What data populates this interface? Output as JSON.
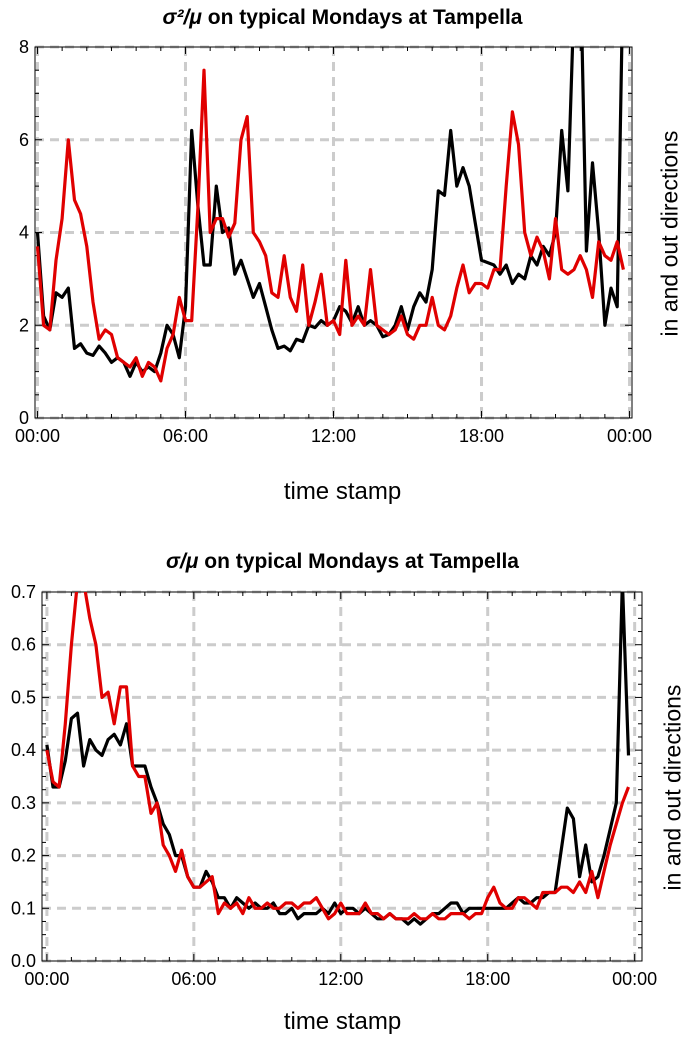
{
  "chart_data": [
    {
      "type": "line",
      "title_math": "σ²/μ",
      "title_rest": " on typical Mondays at Tampella",
      "xlabel": "time stamp",
      "ylabel": "in and out directions",
      "xlim": [
        -0.1,
        24.1
      ],
      "ylim": [
        0,
        8
      ],
      "x_ticks": [
        0,
        6,
        12,
        18,
        24
      ],
      "x_tick_labels": [
        "00:00",
        "06:00",
        "12:00",
        "18:00",
        "00:00"
      ],
      "y_ticks": [
        0,
        2,
        4,
        6,
        8
      ],
      "y_tick_labels": [
        "0",
        "2",
        "4",
        "6",
        "8"
      ],
      "grid": true,
      "grid_style": "dashed",
      "x_unit": "hours",
      "series": [
        {
          "color": "#000000",
          "x": [
            0.0,
            0.25,
            0.5,
            0.75,
            1.0,
            1.25,
            1.5,
            1.75,
            2.0,
            2.25,
            2.5,
            2.75,
            3.0,
            3.25,
            3.5,
            3.75,
            4.0,
            4.25,
            4.5,
            4.75,
            5.0,
            5.25,
            5.5,
            5.75,
            6.0,
            6.25,
            6.5,
            6.75,
            7.0,
            7.25,
            7.5,
            7.75,
            8.0,
            8.25,
            8.5,
            8.75,
            9.0,
            9.25,
            9.5,
            9.75,
            10.0,
            10.25,
            10.5,
            10.75,
            11.0,
            11.25,
            11.5,
            11.75,
            12.0,
            12.25,
            12.5,
            12.75,
            13.0,
            13.25,
            13.5,
            13.75,
            14.0,
            14.25,
            14.5,
            14.75,
            15.0,
            15.25,
            15.5,
            15.75,
            16.0,
            16.25,
            16.5,
            16.75,
            17.0,
            17.25,
            17.5,
            17.75,
            18.0,
            18.25,
            18.5,
            18.75,
            19.0,
            19.25,
            19.5,
            19.75,
            20.0,
            20.25,
            20.5,
            20.75,
            21.0,
            21.25,
            21.5,
            21.75,
            22.0,
            22.25,
            22.5,
            22.75,
            23.0,
            23.25,
            23.5,
            23.75
          ],
          "y": [
            4.0,
            2.2,
            1.9,
            2.7,
            2.6,
            2.8,
            1.5,
            1.6,
            1.4,
            1.35,
            1.55,
            1.4,
            1.2,
            1.3,
            1.2,
            0.9,
            1.2,
            1.0,
            1.1,
            1.0,
            1.4,
            2.0,
            1.8,
            1.3,
            2.4,
            6.2,
            4.6,
            3.3,
            3.3,
            5.0,
            4.0,
            4.1,
            3.1,
            3.4,
            3.0,
            2.6,
            2.9,
            2.4,
            1.9,
            1.5,
            1.55,
            1.45,
            1.7,
            1.65,
            2.0,
            1.95,
            2.1,
            2.0,
            2.1,
            2.4,
            2.3,
            2.05,
            2.4,
            2.0,
            2.1,
            2.0,
            1.75,
            1.8,
            2.0,
            2.4,
            1.9,
            2.4,
            2.7,
            2.5,
            3.2,
            4.9,
            4.8,
            6.2,
            5.0,
            5.4,
            5.0,
            4.2,
            3.4,
            3.35,
            3.3,
            3.1,
            3.3,
            2.9,
            3.1,
            3.0,
            3.5,
            3.3,
            3.7,
            3.5,
            4.0,
            6.2,
            4.9,
            9.0,
            10.0,
            3.6,
            5.5,
            4.0,
            2.0,
            2.8,
            2.4,
            10.0
          ]
        },
        {
          "color": "#e00000",
          "x": [
            0.0,
            0.25,
            0.5,
            0.75,
            1.0,
            1.25,
            1.5,
            1.75,
            2.0,
            2.25,
            2.5,
            2.75,
            3.0,
            3.25,
            3.5,
            3.75,
            4.0,
            4.25,
            4.5,
            4.75,
            5.0,
            5.25,
            5.5,
            5.75,
            6.0,
            6.25,
            6.5,
            6.75,
            7.0,
            7.25,
            7.5,
            7.75,
            8.0,
            8.25,
            8.5,
            8.75,
            9.0,
            9.25,
            9.5,
            9.75,
            10.0,
            10.25,
            10.5,
            10.75,
            11.0,
            11.25,
            11.5,
            11.75,
            12.0,
            12.25,
            12.5,
            12.75,
            13.0,
            13.25,
            13.5,
            13.75,
            14.0,
            14.25,
            14.5,
            14.75,
            15.0,
            15.25,
            15.5,
            15.75,
            16.0,
            16.25,
            16.5,
            16.75,
            17.0,
            17.25,
            17.5,
            17.75,
            18.0,
            18.25,
            18.5,
            18.75,
            19.0,
            19.25,
            19.5,
            19.75,
            20.0,
            20.25,
            20.5,
            20.75,
            21.0,
            21.25,
            21.5,
            21.75,
            22.0,
            22.25,
            22.5,
            22.75,
            23.0,
            23.25,
            23.5,
            23.75
          ],
          "y": [
            3.7,
            2.0,
            1.9,
            3.4,
            4.3,
            6.0,
            4.7,
            4.4,
            3.7,
            2.5,
            1.7,
            1.9,
            1.8,
            1.3,
            1.2,
            1.1,
            1.3,
            0.9,
            1.2,
            1.1,
            0.8,
            1.5,
            1.8,
            2.6,
            2.1,
            2.1,
            4.5,
            7.5,
            4.0,
            4.3,
            4.3,
            3.9,
            4.2,
            6.0,
            6.5,
            4.0,
            3.8,
            3.5,
            2.7,
            2.6,
            3.5,
            2.6,
            2.3,
            3.3,
            2.0,
            2.5,
            3.1,
            2.0,
            2.1,
            1.8,
            3.4,
            2.0,
            2.2,
            2.0,
            3.2,
            2.0,
            1.9,
            1.8,
            1.9,
            2.2,
            1.8,
            1.7,
            2.0,
            2.0,
            2.6,
            2.0,
            1.9,
            2.2,
            2.8,
            3.3,
            2.7,
            2.9,
            2.9,
            2.8,
            3.2,
            3.2,
            5.0,
            6.6,
            5.9,
            4.0,
            3.5,
            3.9,
            3.6,
            3.0,
            4.3,
            3.2,
            3.1,
            3.2,
            3.5,
            3.2,
            2.6,
            3.8,
            3.5,
            3.4,
            3.8,
            3.2
          ]
        }
      ]
    },
    {
      "type": "line",
      "title_math": "σ/μ",
      "title_rest": " on typical Mondays at Tampella",
      "xlabel": "time stamp",
      "ylabel": "in and out directions",
      "xlim": [
        -0.2,
        24.3
      ],
      "ylim": [
        0,
        0.7
      ],
      "x_ticks": [
        0,
        6,
        12,
        18,
        24
      ],
      "x_tick_labels": [
        "00:00",
        "06:00",
        "12:00",
        "18:00",
        "00:00"
      ],
      "y_ticks": [
        0,
        0.1,
        0.2,
        0.3,
        0.4,
        0.5,
        0.6,
        0.7
      ],
      "y_tick_labels": [
        "0.0",
        "0.1",
        "0.2",
        "0.3",
        "0.4",
        "0.5",
        "0.6",
        "0.7"
      ],
      "grid": true,
      "grid_style": "dashed",
      "x_unit": "hours",
      "series": [
        {
          "color": "#000000",
          "x": [
            0.0,
            0.25,
            0.5,
            0.75,
            1.0,
            1.25,
            1.5,
            1.75,
            2.0,
            2.25,
            2.5,
            2.75,
            3.0,
            3.25,
            3.5,
            3.75,
            4.0,
            4.25,
            4.5,
            4.75,
            5.0,
            5.25,
            5.5,
            5.75,
            6.0,
            6.25,
            6.5,
            6.75,
            7.0,
            7.25,
            7.5,
            7.75,
            8.0,
            8.25,
            8.5,
            8.75,
            9.0,
            9.25,
            9.5,
            9.75,
            10.0,
            10.25,
            10.5,
            10.75,
            11.0,
            11.25,
            11.5,
            11.75,
            12.0,
            12.25,
            12.5,
            12.75,
            13.0,
            13.25,
            13.5,
            13.75,
            14.0,
            14.25,
            14.5,
            14.75,
            15.0,
            15.25,
            15.5,
            15.75,
            16.0,
            16.25,
            16.5,
            16.75,
            17.0,
            17.25,
            17.5,
            17.75,
            18.0,
            18.25,
            18.5,
            18.75,
            19.0,
            19.25,
            19.5,
            19.75,
            20.0,
            20.25,
            20.5,
            20.75,
            21.0,
            21.25,
            21.5,
            21.75,
            22.0,
            22.25,
            22.5,
            22.75,
            23.0,
            23.25,
            23.5,
            23.75
          ],
          "y": [
            0.41,
            0.33,
            0.33,
            0.38,
            0.46,
            0.47,
            0.37,
            0.42,
            0.4,
            0.39,
            0.42,
            0.43,
            0.41,
            0.45,
            0.37,
            0.37,
            0.37,
            0.33,
            0.3,
            0.26,
            0.24,
            0.2,
            0.2,
            0.16,
            0.14,
            0.14,
            0.17,
            0.15,
            0.12,
            0.12,
            0.1,
            0.12,
            0.11,
            0.1,
            0.11,
            0.1,
            0.1,
            0.11,
            0.09,
            0.09,
            0.1,
            0.08,
            0.09,
            0.09,
            0.09,
            0.1,
            0.09,
            0.11,
            0.09,
            0.1,
            0.1,
            0.09,
            0.1,
            0.09,
            0.08,
            0.08,
            0.09,
            0.08,
            0.08,
            0.07,
            0.08,
            0.07,
            0.08,
            0.09,
            0.09,
            0.1,
            0.11,
            0.11,
            0.09,
            0.1,
            0.1,
            0.1,
            0.1,
            0.1,
            0.1,
            0.1,
            0.11,
            0.12,
            0.11,
            0.11,
            0.12,
            0.12,
            0.13,
            0.13,
            0.21,
            0.29,
            0.27,
            0.16,
            0.22,
            0.15,
            0.16,
            0.2,
            0.25,
            0.3,
            0.72,
            0.39
          ]
        },
        {
          "color": "#e00000",
          "x": [
            0.0,
            0.25,
            0.5,
            0.75,
            1.0,
            1.25,
            1.5,
            1.75,
            2.0,
            2.25,
            2.5,
            2.75,
            3.0,
            3.25,
            3.5,
            3.75,
            4.0,
            4.25,
            4.5,
            4.75,
            5.0,
            5.25,
            5.5,
            5.75,
            6.0,
            6.25,
            6.5,
            6.75,
            7.0,
            7.25,
            7.5,
            7.75,
            8.0,
            8.25,
            8.5,
            8.75,
            9.0,
            9.25,
            9.5,
            9.75,
            10.0,
            10.25,
            10.5,
            10.75,
            11.0,
            11.25,
            11.5,
            11.75,
            12.0,
            12.25,
            12.5,
            12.75,
            13.0,
            13.25,
            13.5,
            13.75,
            14.0,
            14.25,
            14.5,
            14.75,
            15.0,
            15.25,
            15.5,
            15.75,
            16.0,
            16.25,
            16.5,
            16.75,
            17.0,
            17.25,
            17.5,
            17.75,
            18.0,
            18.25,
            18.5,
            18.75,
            19.0,
            19.25,
            19.5,
            19.75,
            20.0,
            20.25,
            20.5,
            20.75,
            21.0,
            21.25,
            21.5,
            21.75,
            22.0,
            22.25,
            22.5,
            22.75,
            23.0,
            23.25,
            23.5,
            23.75
          ],
          "y": [
            0.4,
            0.34,
            0.33,
            0.45,
            0.6,
            0.72,
            0.72,
            0.65,
            0.6,
            0.5,
            0.51,
            0.45,
            0.52,
            0.52,
            0.37,
            0.35,
            0.35,
            0.28,
            0.3,
            0.22,
            0.2,
            0.17,
            0.21,
            0.16,
            0.14,
            0.14,
            0.15,
            0.16,
            0.09,
            0.11,
            0.1,
            0.11,
            0.09,
            0.12,
            0.1,
            0.1,
            0.11,
            0.1,
            0.1,
            0.11,
            0.11,
            0.1,
            0.11,
            0.11,
            0.12,
            0.1,
            0.08,
            0.09,
            0.11,
            0.09,
            0.09,
            0.09,
            0.11,
            0.09,
            0.09,
            0.08,
            0.09,
            0.08,
            0.08,
            0.08,
            0.09,
            0.08,
            0.08,
            0.09,
            0.08,
            0.08,
            0.09,
            0.09,
            0.09,
            0.08,
            0.09,
            0.09,
            0.12,
            0.14,
            0.11,
            0.1,
            0.1,
            0.12,
            0.12,
            0.11,
            0.1,
            0.13,
            0.13,
            0.13,
            0.14,
            0.14,
            0.13,
            0.15,
            0.13,
            0.17,
            0.12,
            0.17,
            0.22,
            0.26,
            0.3,
            0.33
          ]
        }
      ]
    }
  ]
}
